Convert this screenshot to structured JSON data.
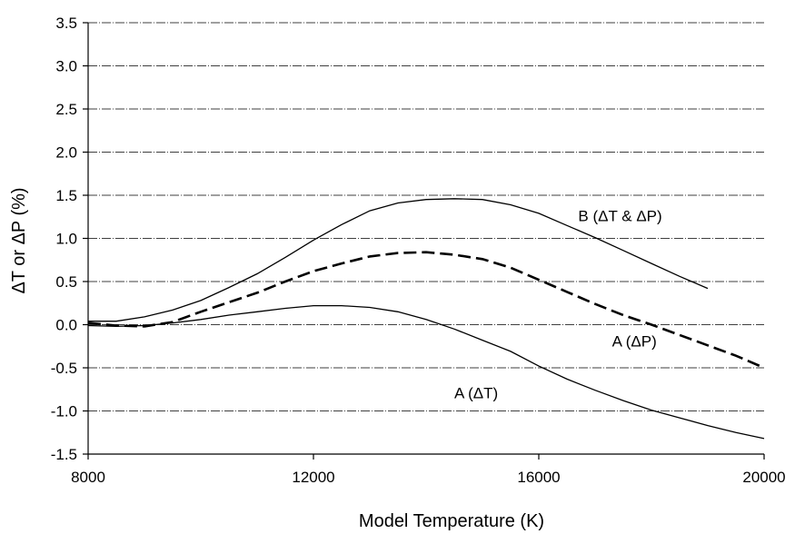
{
  "chart_data": {
    "type": "line",
    "title": "",
    "xlabel": "Model Temperature (K)",
    "ylabel": "ΔT or ΔP (%)",
    "xlim": [
      8000,
      20000
    ],
    "ylim": [
      -1.5,
      3.5
    ],
    "xticks": [
      8000,
      12000,
      16000,
      20000
    ],
    "xtick_labels": [
      "8000",
      "12000",
      "16000",
      "20000"
    ],
    "yticks": [
      -1.5,
      -1.0,
      -0.5,
      0.0,
      0.5,
      1.0,
      1.5,
      2.0,
      2.5,
      3.0,
      3.5
    ],
    "ytick_labels": [
      "-1.5",
      "-1.0",
      "-0.5",
      "0.0",
      "0.5",
      "1.0",
      "1.5",
      "2.0",
      "2.5",
      "3.0",
      "3.5"
    ],
    "grid": "horizontal",
    "series": [
      {
        "name": "B (ΔT & ΔP)",
        "style": "solid",
        "color": "#000000",
        "x": [
          8000,
          8500,
          9000,
          9500,
          10000,
          10500,
          11000,
          11500,
          12000,
          12500,
          13000,
          13500,
          14000,
          14500,
          15000,
          15500,
          16000,
          16500,
          17000,
          17500,
          18000,
          18500,
          19000
        ],
        "y": [
          0.04,
          0.04,
          0.09,
          0.17,
          0.28,
          0.43,
          0.59,
          0.78,
          0.98,
          1.16,
          1.32,
          1.41,
          1.45,
          1.46,
          1.45,
          1.39,
          1.29,
          1.15,
          1.01,
          0.86,
          0.71,
          0.56,
          0.42
        ]
      },
      {
        "name": "A (ΔP)",
        "style": "dashed",
        "color": "#000000",
        "x": [
          8000,
          8500,
          9000,
          9500,
          10000,
          10500,
          11000,
          11500,
          12000,
          12500,
          13000,
          13500,
          14000,
          14500,
          15000,
          15500,
          16000,
          16500,
          17000,
          17500,
          18000,
          18500,
          19000,
          19500,
          20000
        ],
        "y": [
          0.02,
          -0.01,
          -0.02,
          0.03,
          0.15,
          0.26,
          0.37,
          0.5,
          0.62,
          0.71,
          0.79,
          0.83,
          0.84,
          0.81,
          0.76,
          0.66,
          0.52,
          0.38,
          0.24,
          0.11,
          0.0,
          -0.12,
          -0.24,
          -0.36,
          -0.5
        ]
      },
      {
        "name": "A (ΔT)",
        "style": "solid",
        "color": "#000000",
        "x": [
          8000,
          8500,
          9000,
          9500,
          10000,
          10500,
          11000,
          11500,
          12000,
          12500,
          13000,
          13500,
          14000,
          14500,
          15000,
          15500,
          16000,
          16500,
          17000,
          17500,
          18000,
          18500,
          19000,
          19500,
          20000
        ],
        "y": [
          -0.01,
          -0.02,
          -0.01,
          0.02,
          0.06,
          0.11,
          0.15,
          0.19,
          0.22,
          0.22,
          0.2,
          0.15,
          0.06,
          -0.05,
          -0.18,
          -0.31,
          -0.48,
          -0.63,
          -0.76,
          -0.88,
          -0.99,
          -1.08,
          -1.17,
          -1.25,
          -1.32
        ]
      }
    ],
    "annotations": [
      {
        "text": "B (ΔT & ΔP)",
        "x": 16700,
        "y": 1.2
      },
      {
        "text": "A (ΔP)",
        "x": 17300,
        "y": -0.25
      },
      {
        "text": "A (ΔT)",
        "x": 14500,
        "y": -0.85
      }
    ]
  }
}
